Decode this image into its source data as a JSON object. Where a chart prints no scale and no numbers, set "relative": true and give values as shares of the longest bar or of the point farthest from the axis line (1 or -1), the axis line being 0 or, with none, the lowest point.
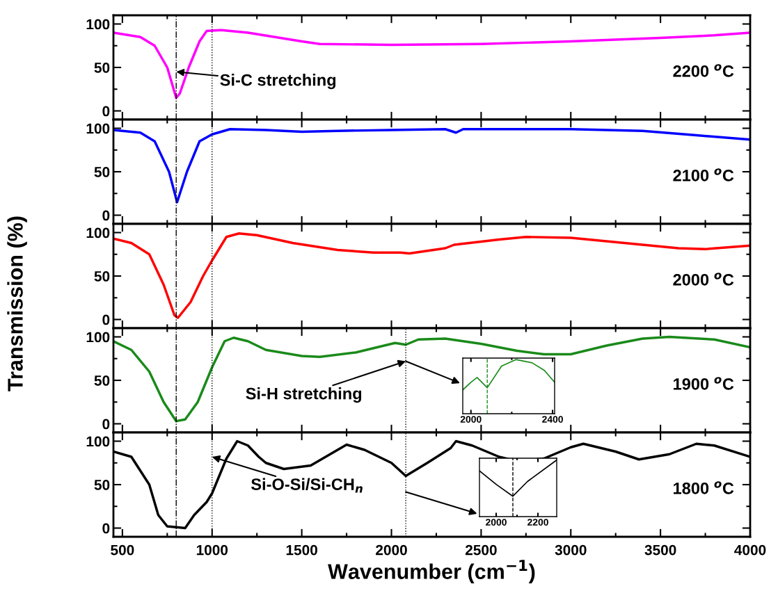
{
  "chart_data": [
    {
      "type": "line",
      "x": [
        450,
        600,
        680,
        750,
        800,
        820,
        870,
        930,
        970,
        1050,
        1200,
        1500,
        1600,
        2000,
        2500,
        3000,
        3500,
        3800,
        4000
      ],
      "series": [
        {
          "color": "#ff00ff",
          "values": [
            90,
            85,
            75,
            50,
            15,
            20,
            50,
            80,
            92,
            93,
            90,
            80,
            77,
            76,
            77,
            80,
            84,
            87,
            90
          ]
        }
      ],
      "xlim": [
        450,
        4000
      ],
      "xticks": [
        500,
        1000,
        1500,
        2000,
        2500,
        3000,
        3500,
        4000
      ],
      "ylim": [
        -10,
        110
      ],
      "yticks": [
        0,
        50,
        100
      ],
      "tick_labels": "y",
      "grid": false,
      "legend": false,
      "ref_lines": [
        {
          "axis": "x",
          "value": 800,
          "line_style": "dashdot"
        },
        {
          "axis": "x",
          "value": 1000,
          "line_style": "dotted"
        }
      ],
      "annotations": [
        {
          "text": "Si-C stretching",
          "x": 800,
          "y": 45
        },
        "2200 $^{o}$C"
      ]
    },
    {
      "type": "line",
      "x": [
        450,
        600,
        680,
        760,
        805,
        860,
        930,
        1000,
        1100,
        1300,
        1500,
        1700,
        2000,
        2300,
        2360,
        2400,
        3000,
        3400,
        3700,
        4000
      ],
      "series": [
        {
          "color": "#0000ff",
          "values": [
            98,
            95,
            85,
            50,
            15,
            50,
            85,
            93,
            99,
            98,
            96,
            97,
            98,
            99,
            95,
            99,
            99,
            97,
            92,
            87
          ]
        }
      ],
      "xlim": [
        450,
        4000
      ],
      "xticks": [
        500,
        1000,
        1500,
        2000,
        2500,
        3000,
        3500,
        4000
      ],
      "ylim": [
        -10,
        110
      ],
      "yticks": [
        0,
        50,
        100
      ],
      "tick_labels": "y",
      "grid": false,
      "legend": false,
      "ref_lines": [
        {
          "axis": "x",
          "value": 800,
          "line_style": "dashdot"
        },
        {
          "axis": "x",
          "value": 1000,
          "line_style": "dotted"
        }
      ],
      "annotations": [
        "2100 $^{o}$C"
      ]
    },
    {
      "type": "line",
      "x": [
        450,
        550,
        650,
        730,
        790,
        810,
        880,
        950,
        1000,
        1080,
        1150,
        1250,
        1450,
        1700,
        1900,
        2050,
        2100,
        2300,
        2350,
        2600,
        2750,
        3000,
        3300,
        3600,
        3750,
        4000
      ],
      "series": [
        {
          "color": "#ff0000",
          "values": [
            93,
            88,
            75,
            40,
            5,
            2,
            20,
            50,
            68,
            95,
            99,
            97,
            88,
            80,
            77,
            77,
            76,
            82,
            86,
            92,
            95,
            94,
            88,
            82,
            81,
            85
          ]
        }
      ],
      "xlim": [
        450,
        4000
      ],
      "xticks": [
        500,
        1000,
        1500,
        2000,
        2500,
        3000,
        3500,
        4000
      ],
      "ylim": [
        -10,
        110
      ],
      "yticks": [
        0,
        50,
        100
      ],
      "tick_labels": "y",
      "grid": false,
      "legend": false,
      "ylabel": "Transmission (%)",
      "ref_lines": [
        {
          "axis": "x",
          "value": 800,
          "line_style": "dashdot"
        },
        {
          "axis": "x",
          "value": 1000,
          "line_style": "dotted"
        }
      ],
      "annotations": [
        "2000 $^{o}$C"
      ]
    },
    {
      "type": "line",
      "x": [
        450,
        550,
        650,
        730,
        800,
        850,
        920,
        1000,
        1070,
        1120,
        1200,
        1300,
        1500,
        1600,
        1800,
        2020,
        2080,
        2150,
        2300,
        2500,
        2700,
        2850,
        3000,
        3200,
        3400,
        3550,
        3800,
        4000
      ],
      "series": [
        {
          "color": "#1a8a1a",
          "values": [
            95,
            85,
            60,
            25,
            3,
            5,
            25,
            65,
            95,
            99,
            95,
            85,
            78,
            77,
            82,
            93,
            91,
            97,
            98,
            92,
            84,
            80,
            80,
            90,
            98,
            100,
            97,
            88
          ]
        }
      ],
      "xlim": [
        450,
        4000
      ],
      "xticks": [
        500,
        1000,
        1500,
        2000,
        2500,
        3000,
        3500,
        4000
      ],
      "ylim": [
        -10,
        110
      ],
      "yticks": [
        0,
        50,
        100
      ],
      "tick_labels": "y",
      "grid": false,
      "legend": false,
      "ref_lines": [
        {
          "axis": "x",
          "value": 800,
          "line_style": "dashdot"
        },
        {
          "axis": "x",
          "value": 1000,
          "line_style": "dotted"
        },
        {
          "axis": "x",
          "value": 2080,
          "line_style": "dotted"
        }
      ],
      "annotations": [
        {
          "text": "Si-H stretching",
          "x": 2080,
          "y": 72
        },
        "1900 $^{o}$C"
      ]
    },
    {
      "type": "line",
      "x": [
        1960,
        2000,
        2030,
        2080,
        2150,
        2220,
        2300,
        2360,
        2410
      ],
      "series": [
        {
          "color": "#1a8a1a",
          "values": [
            0.44,
            0.58,
            0.67,
            0.48,
            0.88,
            1,
            0.94,
            0.8,
            0.58
          ]
        }
      ],
      "relative": true,
      "xlim": [
        1960,
        2410
      ],
      "xticks": [
        2000,
        2400
      ],
      "tick_labels": "x",
      "grid": false,
      "legend": false,
      "ref_lines": [
        {
          "axis": "x",
          "value": 2080,
          "line_style": "dashed"
        }
      ]
    },
    {
      "type": "line",
      "x": [
        450,
        550,
        650,
        700,
        750,
        850,
        900,
        970,
        1000,
        1080,
        1140,
        1200,
        1260,
        1300,
        1400,
        1550,
        1700,
        1750,
        1850,
        2000,
        2080,
        2200,
        2330,
        2360,
        2450,
        2600,
        2700,
        2850,
        3000,
        3070,
        3250,
        3380,
        3550,
        3700,
        3800,
        4000
      ],
      "series": [
        {
          "color": "#000000",
          "values": [
            88,
            82,
            50,
            15,
            2,
            0,
            15,
            30,
            40,
            80,
            100,
            95,
            82,
            75,
            68,
            72,
            90,
            96,
            90,
            75,
            60,
            75,
            92,
            100,
            95,
            82,
            77,
            80,
            93,
            97,
            88,
            79,
            85,
            97,
            95,
            82
          ]
        }
      ],
      "xlim": [
        450,
        4000
      ],
      "xticks": [
        500,
        1000,
        1500,
        2000,
        2500,
        3000,
        3500,
        4000
      ],
      "ylim": [
        -10,
        110
      ],
      "yticks": [
        0,
        50,
        100
      ],
      "grid": false,
      "legend": false,
      "xlabel": "Wavenumber (cm$^{−1}$)",
      "ref_lines": [
        {
          "axis": "x",
          "value": 800,
          "line_style": "dashdot"
        },
        {
          "axis": "x",
          "value": 1000,
          "line_style": "dotted"
        },
        {
          "axis": "x",
          "value": 2080,
          "line_style": "dotted"
        }
      ],
      "annotations": [
        {
          "text": "Si-O-Si/Si-CH$_{n}$",
          "x": 1000,
          "y": 82
        },
        "1800 $^{o}$C"
      ]
    },
    {
      "type": "line",
      "x": [
        1920,
        2000,
        2080,
        2150,
        2290
      ],
      "series": [
        {
          "color": "#000000",
          "values": [
            0.81,
            0.57,
            0.36,
            0.62,
            1
          ]
        }
      ],
      "relative": true,
      "xlim": [
        1920,
        2290
      ],
      "xticks": [
        2000,
        2200
      ],
      "tick_labels": "x",
      "grid": false,
      "legend": false,
      "ref_lines": [
        {
          "axis": "x",
          "value": 2080,
          "line_style": "dashed"
        }
      ]
    }
  ]
}
